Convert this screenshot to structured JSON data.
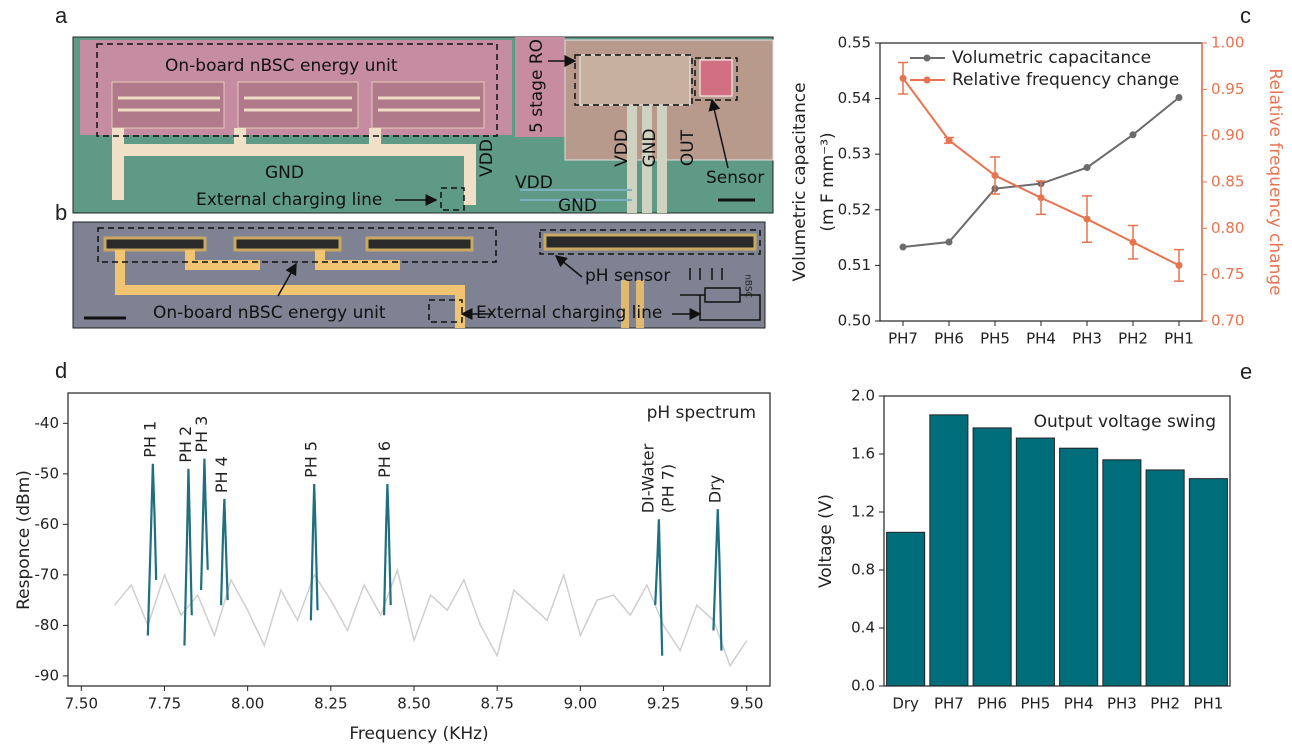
{
  "images": [
    {
      "label": "a",
      "texts": [
        "On-board nBSC energy unit",
        "5 stage RO",
        "GND",
        "VDD",
        "External charging line",
        "VDD",
        "VDD",
        "GND",
        "OUT",
        "GND",
        "Sensor"
      ]
    },
    {
      "label": "b",
      "texts": [
        "pH sensor",
        "On-board nBSC energy unit",
        "External charging line",
        "nBSC"
      ]
    }
  ],
  "chart_data": [
    {
      "type": "line",
      "panel_label": "c",
      "categories": [
        "PH7",
        "PH6",
        "PH5",
        "PH4",
        "PH3",
        "PH2",
        "PH1"
      ],
      "ylabel": [
        "Volumetric capacitance",
        "(m F mm⁻³)"
      ],
      "y2label": "Relative frequency change",
      "ylim": [
        0.5,
        0.55
      ],
      "yticks": [
        {
          "value": 0.5,
          "label": "0.50"
        },
        0.51,
        0.52,
        0.53,
        0.54,
        0.55
      ],
      "y2lim": [
        0.7,
        1.0
      ],
      "y2ticks": [
        {
          "value": 0.7,
          "label": "0.70"
        },
        0.75,
        {
          "value": 0.8,
          "label": "0.80"
        },
        0.85,
        {
          "value": 0.9,
          "label": "0.90"
        },
        0.95,
        {
          "value": 1.0,
          "label": "1.00"
        }
      ],
      "y2color": "#e8734f",
      "legend": "top",
      "series": [
        {
          "name": "Volumetric capacitance",
          "color": "#6b6b6b",
          "values": [
            0.5133,
            0.5142,
            0.5238,
            0.5247,
            0.5276,
            0.5335,
            0.5402
          ]
        },
        {
          "name": "Relative frequency change",
          "color": "#e8734f",
          "axis": "y2",
          "values": [
            0.962,
            0.895,
            0.857,
            0.833,
            0.81,
            0.785,
            0.76
          ],
          "errors": [
            0.017,
            0.003,
            0.02,
            0.018,
            0.025,
            0.018,
            0.017
          ]
        }
      ]
    },
    {
      "type": "spectrum",
      "panel_label": "d",
      "xlabel": "Frequency (KHz)",
      "ylabel": "Responce (dBm)",
      "annotation": "pH spectrum",
      "xlim": [
        7.46,
        9.57
      ],
      "xticks": [
        {
          "value": 7.5,
          "label": "7.50"
        },
        7.75,
        {
          "value": 8,
          "label": "8.00"
        },
        8.25,
        {
          "value": 8.5,
          "label": "8.50"
        },
        8.75,
        {
          "value": 9,
          "label": "9.00"
        },
        9.25,
        {
          "value": 9.5,
          "label": "9.50"
        }
      ],
      "ylim": [
        -92,
        -34
      ],
      "yticks": [
        -40,
        -50,
        -60,
        -70,
        -80,
        -90
      ],
      "series": [
        {
          "color": "#cfcfcf",
          "x": [
            7.6,
            7.65,
            7.7,
            7.75,
            7.8,
            7.85,
            7.9,
            7.95,
            8,
            8.05,
            8.1,
            8.15,
            8.2,
            8.25,
            8.3,
            8.35,
            8.4,
            8.45,
            8.5,
            8.55,
            8.6,
            8.65,
            8.7,
            8.75,
            8.8,
            8.85,
            8.9,
            8.95,
            9,
            9.05,
            9.1,
            9.15,
            9.2,
            9.25,
            9.3,
            9.35,
            9.4,
            9.45,
            9.5
          ],
          "values": [
            -76,
            -72,
            -80,
            -70,
            -78,
            -74,
            -82,
            -71,
            -77,
            -84,
            -73,
            -79,
            -70,
            -75,
            -81,
            -72,
            -78,
            -69,
            -83,
            -74,
            -77,
            -71,
            -80,
            -86,
            -73,
            -76,
            -79,
            -70,
            -82,
            -75,
            -74,
            -78,
            -72,
            -80,
            -85,
            -76,
            -79,
            -88,
            -83
          ]
        },
        {
          "name": "PH 1",
          "color": "#1f6f80",
          "x": [
            7.7,
            7.71,
            7.715,
            7.72,
            7.725
          ],
          "values": [
            -82,
            -60,
            -48,
            -58,
            -71
          ]
        },
        {
          "name": "PH 2",
          "color": "#1f6f80",
          "x": [
            7.81,
            7.818,
            7.822,
            7.826,
            7.832
          ],
          "values": [
            -84,
            -62,
            -49,
            -60,
            -78
          ]
        },
        {
          "name": "PH 3",
          "color": "#1f6f80",
          "x": [
            7.86,
            7.866,
            7.87,
            7.874,
            7.88
          ],
          "values": [
            -73,
            -58,
            -47,
            -57,
            -69
          ]
        },
        {
          "name": "PH 4",
          "color": "#1f6f80",
          "x": [
            7.92,
            7.926,
            7.93,
            7.934,
            7.94
          ],
          "values": [
            -76,
            -62,
            -55,
            -63,
            -75
          ]
        },
        {
          "name": "PH 5",
          "color": "#1f6f80",
          "x": [
            8.19,
            8.196,
            8.2,
            8.204,
            8.21
          ],
          "values": [
            -79,
            -62,
            -52,
            -61,
            -77
          ]
        },
        {
          "name": "PH 6",
          "color": "#1f6f80",
          "x": [
            8.41,
            8.416,
            8.42,
            8.424,
            8.43
          ],
          "values": [
            -78,
            -61,
            -52,
            -60,
            -76
          ]
        },
        {
          "name": "DI-Water",
          "subname": "(PH 7)",
          "color": "#1f6f80",
          "x": [
            9.225,
            9.232,
            9.236,
            9.24,
            9.246
          ],
          "values": [
            -76,
            -66,
            -59,
            -70,
            -86
          ]
        },
        {
          "name": "Dry",
          "color": "#1f6f80",
          "x": [
            9.4,
            9.408,
            9.413,
            9.418,
            9.424
          ],
          "values": [
            -81,
            -66,
            -57,
            -67,
            -85
          ]
        }
      ]
    },
    {
      "type": "bar",
      "panel_label": "e",
      "ylabel": "Voltage (V)",
      "annotation": "Output voltage swing",
      "categories": [
        "Dry",
        "PH7",
        "PH6",
        "PH5",
        "PH4",
        "PH3",
        "PH2",
        "PH1"
      ],
      "values": [
        1.06,
        1.87,
        1.78,
        1.71,
        1.64,
        1.56,
        1.49,
        1.43
      ],
      "color": "#006e7a",
      "ylim": [
        0,
        2.0
      ],
      "yticks": [
        {
          "value": 0,
          "label": "0.0"
        },
        0.4,
        0.8,
        1.2,
        1.6,
        {
          "value": 2,
          "label": "2.0"
        }
      ]
    }
  ]
}
